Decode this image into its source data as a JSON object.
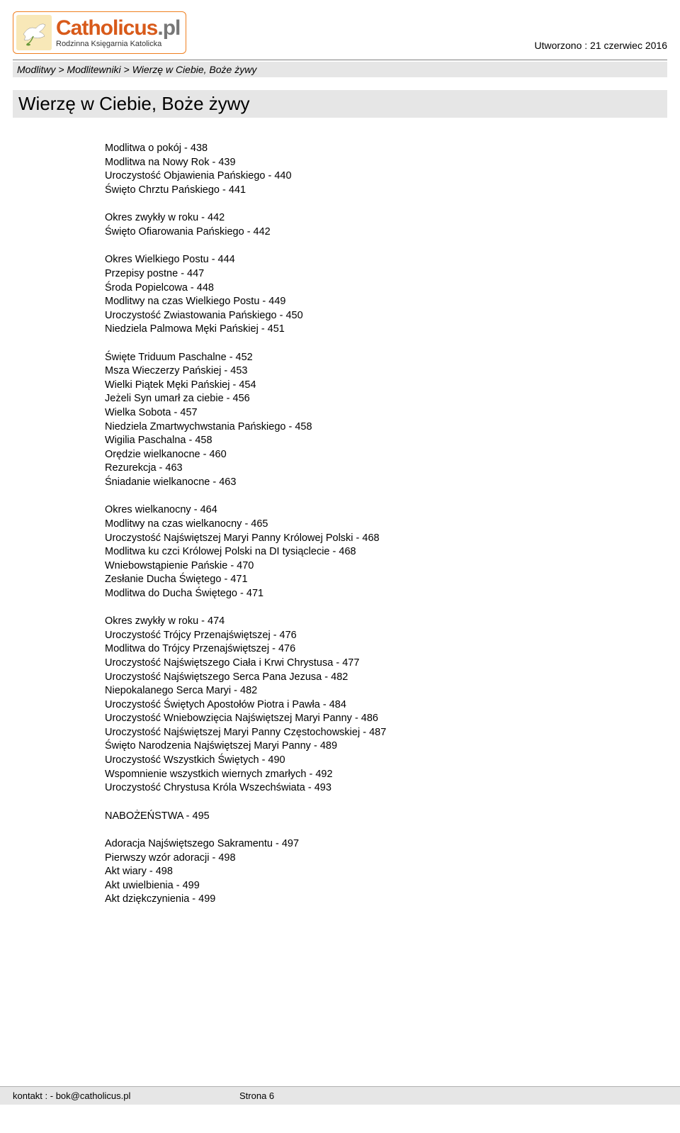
{
  "logo": {
    "name_part1": "Catholicus",
    "name_part2": ".pl",
    "subtitle": "Rodzinna Księgarnia Katolicka"
  },
  "created_label": "Utworzono : 21 czerwiec 2016",
  "breadcrumb": "Modlitwy > Modlitewniki > Wierzę w Ciebie, Boże żywy",
  "title": "Wierzę w Ciebie, Boże żywy",
  "groups": [
    [
      "Modlitwa o pokój - 438",
      "Modlitwa na Nowy Rok - 439",
      "Uroczystość Objawienia Pańskiego - 440",
      "Święto Chrztu Pańskiego - 441"
    ],
    [
      "Okres zwykły w roku - 442",
      "Święto Ofiarowania Pańskiego - 442"
    ],
    [
      "Okres Wielkiego Postu - 444",
      "Przepisy postne - 447",
      "Środa Popielcowa - 448",
      "Modlitwy na czas Wielkiego Postu - 449",
      "Uroczystość Zwiastowania Pańskiego - 450",
      "Niedziela Palmowa Męki Pańskiej - 451"
    ],
    [
      "Święte Triduum Paschalne - 452",
      "Msza Wieczerzy Pańskiej - 453",
      "Wielki Piątek Męki Pańskiej - 454",
      "Jeżeli Syn umarł za ciebie - 456",
      "Wielka Sobota - 457",
      "Niedziela Zmartwychwstania Pańskiego - 458",
      "Wigilia Paschalna - 458",
      "Orędzie wielkanocne - 460",
      "Rezurekcja - 463",
      "Śniadanie wielkanocne - 463"
    ],
    [
      "Okres wielkanocny - 464",
      "Modlitwy na czas wielkanocny - 465",
      "Uroczystość Najświętszej Maryi Panny Królowej Polski - 468",
      "Modlitwa ku czci Królowej Polski na DI tysiąclecie - 468",
      "Wniebowstąpienie Pańskie - 470",
      "Zesłanie Ducha Świętego - 471",
      "Modlitwa do Ducha Świętego - 471"
    ],
    [
      "Okres zwykły w roku - 474",
      "Uroczystość Trójcy Przenajświętszej - 476",
      "Modlitwa do Trójcy Przenajświętszej - 476",
      "Uroczystość Najświętszego Ciała i Krwi Chrystusa - 477",
      "Uroczystość Najświętszego Serca Pana Jezusa - 482",
      "Niepokalanego Serca Maryi - 482",
      "Uroczystość Świętych Apostołów Piotra i Pawła - 484",
      "Uroczystość Wniebowzięcia Najświętszej Maryi Panny - 486",
      "Uroczystość Najświętszej Maryi Panny Częstochowskiej - 487",
      "Święto Narodzenia Najświętszej Maryi Panny - 489",
      "Uroczystość Wszystkich Świętych - 490",
      "Wspomnienie wszystkich wiernych zmarłych - 492",
      "Uroczystość Chrystusa Króla Wszechświata - 493"
    ],
    [
      "NABOŻEŃSTWA - 495"
    ],
    [
      "Adoracja Najświętszego Sakramentu - 497",
      "Pierwszy wzór adoracji - 498",
      "Akt wiary - 498",
      "Akt uwielbienia - 499",
      "Akt dziękczynienia - 499"
    ]
  ],
  "footer": {
    "contact": "kontakt :  - bok@catholicus.pl",
    "page": "Strona 6"
  },
  "colors": {
    "orange": "#d85a1a",
    "gray": "#777777",
    "band": "#e6e6e6",
    "rule": "#808080"
  }
}
